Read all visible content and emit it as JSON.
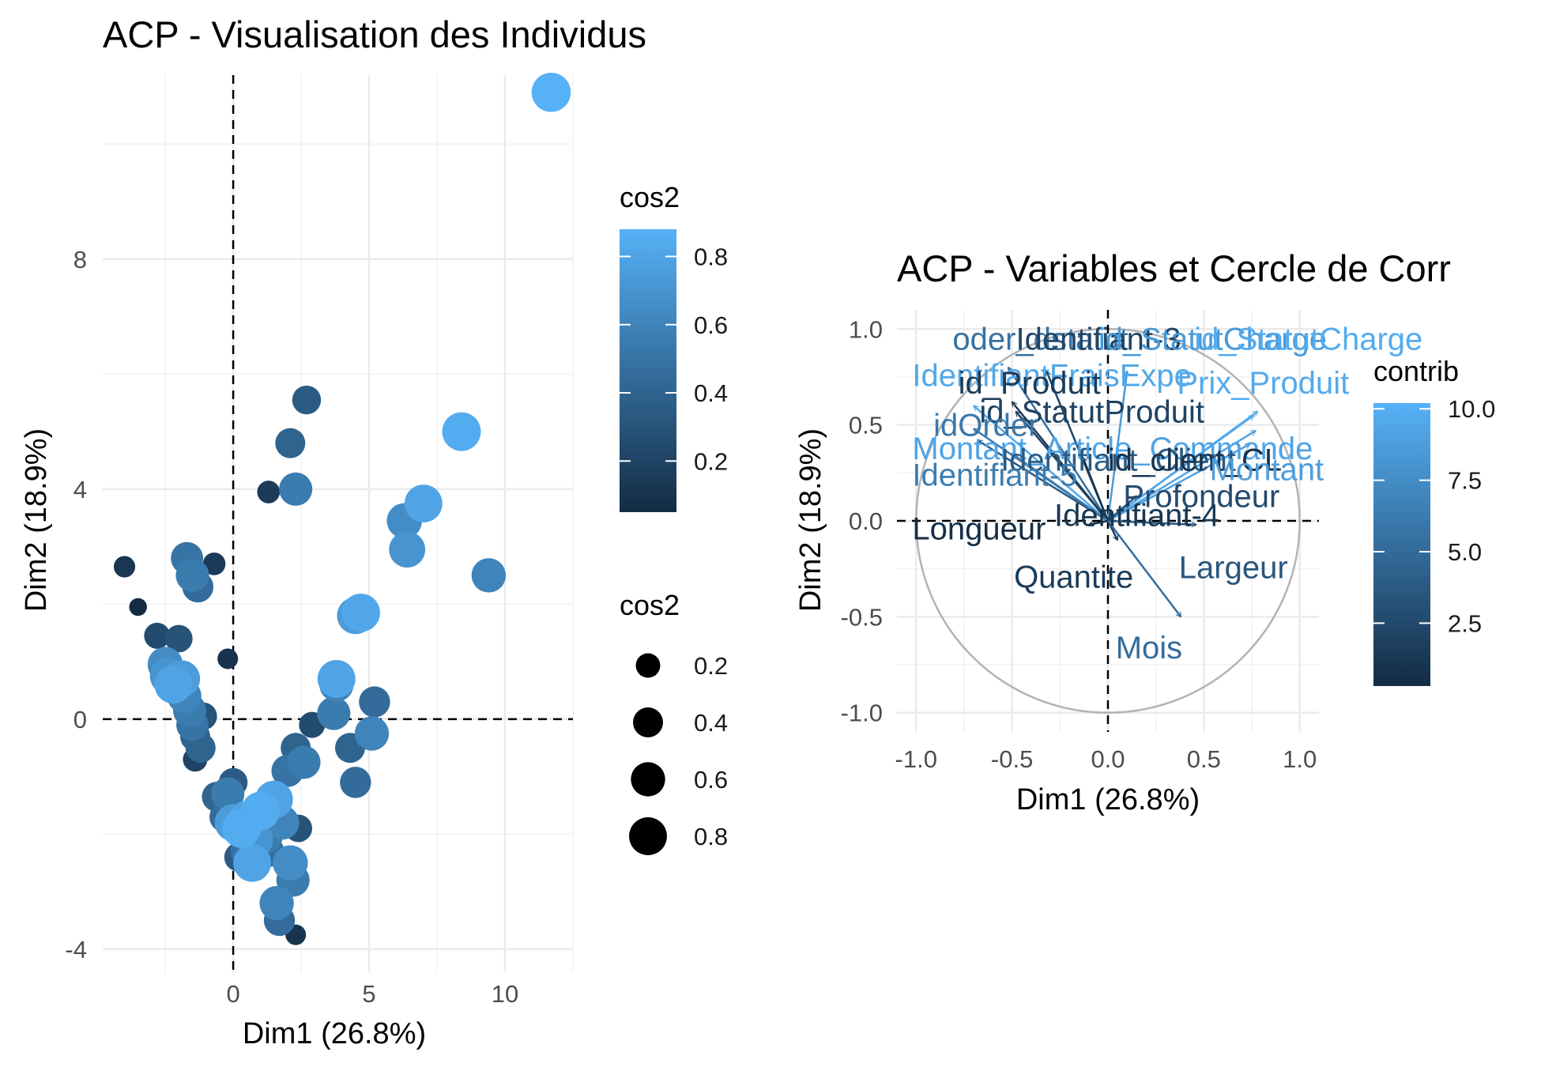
{
  "chart_data": [
    {
      "type": "scatter",
      "title": "ACP - Visualisation des Individus",
      "xlabel": "Dim1 (26.8%)",
      "ylabel": "Dim2 (18.9%)",
      "xlim": [
        -4.8,
        12.5
      ],
      "ylim": [
        -4.4,
        11.2
      ],
      "xticks": [
        0,
        5,
        10
      ],
      "yticks": [
        -4,
        0,
        4,
        8
      ],
      "grid": true,
      "reference_lines": {
        "x": 0,
        "y": 0
      },
      "color_scale": {
        "title": "cos2",
        "low": "#132b43",
        "high": "#56b1f7",
        "ticks": [
          0.2,
          0.4,
          0.6,
          0.8
        ]
      },
      "size_legend": {
        "title": "cos2",
        "values": [
          0.2,
          0.4,
          0.6,
          0.8
        ]
      },
      "points": [
        {
          "x": 11.7,
          "y": 10.9,
          "cos2": 0.88
        },
        {
          "x": 8.4,
          "y": 5.0,
          "cos2": 0.85
        },
        {
          "x": 7.0,
          "y": 3.75,
          "cos2": 0.8
        },
        {
          "x": 6.4,
          "y": 2.95,
          "cos2": 0.7
        },
        {
          "x": 6.3,
          "y": 3.45,
          "cos2": 0.65
        },
        {
          "x": 9.4,
          "y": 2.5,
          "cos2": 0.6
        },
        {
          "x": 4.7,
          "y": 1.85,
          "cos2": 0.82
        },
        {
          "x": 4.5,
          "y": 1.8,
          "cos2": 0.75
        },
        {
          "x": 3.8,
          "y": 0.7,
          "cos2": 0.8
        },
        {
          "x": 3.8,
          "y": 0.6,
          "cos2": 0.6
        },
        {
          "x": 3.7,
          "y": 0.1,
          "cos2": 0.55
        },
        {
          "x": 5.2,
          "y": 0.3,
          "cos2": 0.45
        },
        {
          "x": 5.1,
          "y": -0.25,
          "cos2": 0.6
        },
        {
          "x": 4.3,
          "y": -0.5,
          "cos2": 0.4
        },
        {
          "x": 4.5,
          "y": -1.1,
          "cos2": 0.45
        },
        {
          "x": 2.7,
          "y": 5.55,
          "cos2": 0.35
        },
        {
          "x": 2.1,
          "y": 4.8,
          "cos2": 0.4
        },
        {
          "x": 2.3,
          "y": 4.0,
          "cos2": 0.55
        },
        {
          "x": 1.3,
          "y": 3.95,
          "cos2": 0.15
        },
        {
          "x": 2.9,
          "y": -0.1,
          "cos2": 0.25
        },
        {
          "x": 2.3,
          "y": -0.5,
          "cos2": 0.4
        },
        {
          "x": 2.6,
          "y": -0.75,
          "cos2": 0.55
        },
        {
          "x": 2.0,
          "y": -0.9,
          "cos2": 0.5
        },
        {
          "x": 1.5,
          "y": -1.4,
          "cos2": 0.8
        },
        {
          "x": 1.0,
          "y": -1.6,
          "cos2": 0.85
        },
        {
          "x": 0.5,
          "y": -1.75,
          "cos2": 0.8
        },
        {
          "x": 0.3,
          "y": -1.9,
          "cos2": 0.85
        },
        {
          "x": 0.0,
          "y": -1.8,
          "cos2": 0.75
        },
        {
          "x": 0.8,
          "y": -2.1,
          "cos2": 0.7
        },
        {
          "x": 1.2,
          "y": -2.05,
          "cos2": 0.55
        },
        {
          "x": 0.5,
          "y": -2.3,
          "cos2": 0.5
        },
        {
          "x": 1.8,
          "y": -1.8,
          "cos2": 0.6
        },
        {
          "x": 2.4,
          "y": -1.9,
          "cos2": 0.3
        },
        {
          "x": 2.1,
          "y": -2.5,
          "cos2": 0.65
        },
        {
          "x": 2.2,
          "y": -2.8,
          "cos2": 0.55
        },
        {
          "x": 0.7,
          "y": -2.5,
          "cos2": 0.8
        },
        {
          "x": 1.3,
          "y": -2.3,
          "cos2": 0.45
        },
        {
          "x": 0.2,
          "y": -2.4,
          "cos2": 0.35
        },
        {
          "x": 1.6,
          "y": -3.2,
          "cos2": 0.6
        },
        {
          "x": 1.7,
          "y": -3.5,
          "cos2": 0.45
        },
        {
          "x": 2.3,
          "y": -3.75,
          "cos2": 0.1
        },
        {
          "x": -0.2,
          "y": -1.3,
          "cos2": 0.55
        },
        {
          "x": -0.6,
          "y": -1.35,
          "cos2": 0.4
        },
        {
          "x": -0.3,
          "y": -1.7,
          "cos2": 0.45
        },
        {
          "x": 0.0,
          "y": -1.1,
          "cos2": 0.35
        },
        {
          "x": -2.4,
          "y": 0.75,
          "cos2": 0.7
        },
        {
          "x": -2.5,
          "y": 0.95,
          "cos2": 0.65
        },
        {
          "x": -2.2,
          "y": 0.6,
          "cos2": 0.8
        },
        {
          "x": -1.9,
          "y": 0.7,
          "cos2": 0.75
        },
        {
          "x": -1.8,
          "y": 0.4,
          "cos2": 0.6
        },
        {
          "x": -1.6,
          "y": 0.15,
          "cos2": 0.55
        },
        {
          "x": -1.5,
          "y": -0.1,
          "cos2": 0.5
        },
        {
          "x": -1.4,
          "y": -0.3,
          "cos2": 0.4
        },
        {
          "x": -1.2,
          "y": -0.5,
          "cos2": 0.4
        },
        {
          "x": -1.1,
          "y": 0.05,
          "cos2": 0.3
        },
        {
          "x": -1.4,
          "y": -0.7,
          "cos2": 0.2
        },
        {
          "x": -1.7,
          "y": 2.8,
          "cos2": 0.5
        },
        {
          "x": -1.5,
          "y": 2.5,
          "cos2": 0.55
        },
        {
          "x": -1.3,
          "y": 2.3,
          "cos2": 0.45
        },
        {
          "x": -0.7,
          "y": 2.7,
          "cos2": 0.15
        },
        {
          "x": -4.0,
          "y": 2.65,
          "cos2": 0.12
        },
        {
          "x": -3.5,
          "y": 1.95,
          "cos2": 0.05
        },
        {
          "x": -2.8,
          "y": 1.45,
          "cos2": 0.25
        },
        {
          "x": -2.0,
          "y": 1.4,
          "cos2": 0.3
        },
        {
          "x": -0.2,
          "y": 1.05,
          "cos2": 0.1
        }
      ]
    },
    {
      "type": "scatter",
      "subtype": "correlation-circle",
      "title": "ACP - Variables et Cercle de Corr",
      "xlabel": "Dim1 (26.8%)",
      "ylabel": "Dim2 (18.9%)",
      "xlim": [
        -1.1,
        1.1
      ],
      "ylim": [
        -1.1,
        1.1
      ],
      "xticks": [
        -1.0,
        -0.5,
        0.0,
        0.5,
        1.0
      ],
      "xtick_labels": [
        "-1.0",
        "-0.5",
        "0.0",
        "0.5",
        "1.0"
      ],
      "yticks": [
        -1.0,
        -0.5,
        0.0,
        0.5,
        1.0
      ],
      "ytick_labels": [
        "-1.0",
        "-0.5",
        "0.0",
        "0.5",
        "1.0"
      ],
      "grid": true,
      "reference_lines": {
        "x": 0,
        "y": 0
      },
      "circle_radius": 1,
      "color_scale": {
        "title": "contrib",
        "low": "#132b43",
        "high": "#56b1f7",
        "ticks": [
          2.5,
          5.0,
          7.5,
          10.0
        ],
        "tick_labels": [
          "2.5",
          "5.0",
          "7.5",
          "10.0"
        ]
      },
      "variables": [
        {
          "name": "oder_dstatut",
          "x": -0.52,
          "y": 0.8,
          "contrib": 5.5,
          "label_x": -0.81,
          "label_y": 0.95
        },
        {
          "name": "Identifiant-3",
          "x": -0.32,
          "y": 0.78,
          "contrib": 2.2,
          "label_x": -0.48,
          "label_y": 0.95
        },
        {
          "name": "id_StatutCharge",
          "x": 0.1,
          "y": 0.78,
          "contrib": 8.5,
          "label_x": -0.05,
          "label_y": 0.95
        },
        {
          "name": "id_StatutCharge",
          "x": 0.76,
          "y": 0.55,
          "contrib": 9.8,
          "label_x": 0.45,
          "label_y": 0.95
        },
        {
          "name": "IdentifiantFraisExpe",
          "x": -0.7,
          "y": 0.6,
          "contrib": 9.5,
          "label_x": -1.02,
          "label_y": 0.76
        },
        {
          "name": "id_Produit",
          "x": -0.5,
          "y": 0.62,
          "contrib": 1.5,
          "label_x": -0.78,
          "label_y": 0.72
        },
        {
          "name": "Prix_Produit",
          "x": 0.78,
          "y": 0.57,
          "contrib": 9.7,
          "label_x": 0.36,
          "label_y": 0.72
        },
        {
          "name": "id_StatutProduit",
          "x": -0.48,
          "y": 0.57,
          "contrib": 2.0,
          "label_x": -0.67,
          "label_y": 0.57
        },
        {
          "name": "idOrder",
          "x": -0.7,
          "y": 0.48,
          "contrib": 6.0,
          "label_x": -0.91,
          "label_y": 0.5
        },
        {
          "name": "Montant_Article_Commande",
          "x": 0.77,
          "y": 0.47,
          "contrib": 9.2,
          "label_x": -1.02,
          "label_y": 0.38
        },
        {
          "name": "Identifiant_Client",
          "x": -0.68,
          "y": 0.42,
          "contrib": 3.8,
          "label_x": -0.56,
          "label_y": 0.32
        },
        {
          "name": "id_client_CL",
          "x": -0.13,
          "y": 0.33,
          "contrib": 1.0,
          "label_x": 0.0,
          "label_y": 0.32
        },
        {
          "name": "Montant",
          "x": 0.74,
          "y": 0.4,
          "contrib": 8.8,
          "label_x": 0.53,
          "label_y": 0.27
        },
        {
          "name": "Identifiant-5",
          "x": -0.5,
          "y": 0.35,
          "contrib": 6.4,
          "label_x": -1.02,
          "label_y": 0.24
        },
        {
          "name": "Profondeur",
          "x": 0.15,
          "y": 0.13,
          "contrib": 2.7,
          "label_x": 0.08,
          "label_y": 0.13
        },
        {
          "name": "Identifiant-4",
          "x": 0.02,
          "y": 0.05,
          "contrib": 1.2,
          "label_x": -0.28,
          "label_y": 0.03
        },
        {
          "name": "Longueur",
          "x": -0.1,
          "y": -0.02,
          "contrib": 0.5,
          "label_x": -1.02,
          "label_y": -0.04
        },
        {
          "name": "Largeur",
          "x": 0.46,
          "y": -0.02,
          "contrib": 3.5,
          "label_x": 0.37,
          "label_y": -0.24
        },
        {
          "name": "Quantite",
          "x": 0.05,
          "y": -0.1,
          "contrib": 1.5,
          "label_x": -0.49,
          "label_y": -0.29
        },
        {
          "name": "Mois",
          "x": 0.38,
          "y": -0.5,
          "contrib": 5.2,
          "label_x": 0.04,
          "label_y": -0.66
        }
      ]
    }
  ]
}
